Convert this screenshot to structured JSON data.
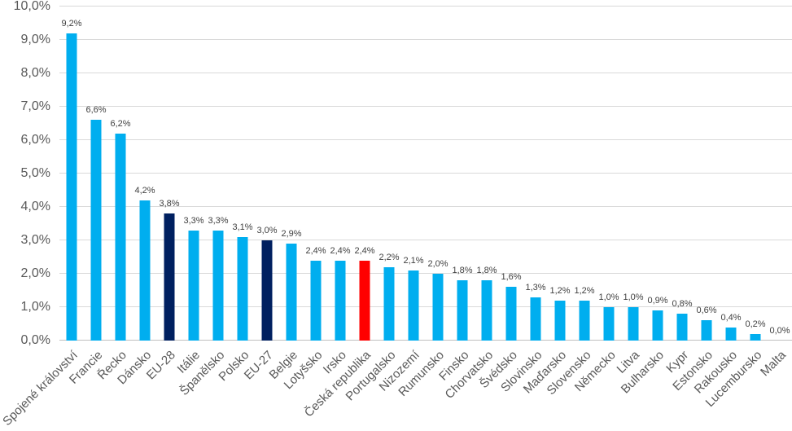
{
  "chart_data": {
    "type": "bar",
    "title": "",
    "xlabel": "",
    "ylabel": "",
    "categories": [
      "Spojené království",
      "Francie",
      "Řecko",
      "Dánsko",
      "EU-28",
      "Itálie",
      "Španělsko",
      "Polsko",
      "EU-27",
      "Belgie",
      "Lotyšsko",
      "Irsko",
      "Česká republika",
      "Portugalsko",
      "Nizozemí",
      "Rumunsko",
      "Finsko",
      "Chorvatsko",
      "Švédsko",
      "Slovinsko",
      "Maďarsko",
      "Slovensko",
      "Německo",
      "Litva",
      "Bulharsko",
      "Kypr",
      "Estonsko",
      "Rakousko",
      "Lucembursko",
      "Malta"
    ],
    "values": [
      9.2,
      6.6,
      6.2,
      4.2,
      3.8,
      3.3,
      3.3,
      3.1,
      3.0,
      2.9,
      2.4,
      2.4,
      2.4,
      2.2,
      2.1,
      2.0,
      1.8,
      1.8,
      1.6,
      1.3,
      1.2,
      1.2,
      1.0,
      1.0,
      0.9,
      0.8,
      0.6,
      0.4,
      0.2,
      0.0
    ],
    "value_labels": [
      "9,2%",
      "6,6%",
      "6,2%",
      "4,2%",
      "3,8%",
      "3,3%",
      "3,3%",
      "3,1%",
      "3,0%",
      "2,9%",
      "2,4%",
      "2,4%",
      "2,4%",
      "2,2%",
      "2,1%",
      "2,0%",
      "1,8%",
      "1,8%",
      "1,6%",
      "1,3%",
      "1,2%",
      "1,2%",
      "1,0%",
      "1,0%",
      "0,9%",
      "0,8%",
      "0,6%",
      "0,4%",
      "0,2%",
      "0,0%"
    ],
    "bar_styles": [
      "blue",
      "blue",
      "blue",
      "blue",
      "navy",
      "blue",
      "blue",
      "blue",
      "navy",
      "blue",
      "blue",
      "blue",
      "red",
      "blue",
      "blue",
      "blue",
      "blue",
      "blue",
      "blue",
      "blue",
      "blue",
      "blue",
      "blue",
      "blue",
      "blue",
      "blue",
      "blue",
      "blue",
      "blue",
      "blue"
    ],
    "palette": {
      "blue": "#00aeef",
      "navy": "#002060",
      "red": "#ff0000"
    },
    "ylim": [
      0,
      10
    ],
    "ytick_labels": [
      "0,0%",
      "1,0%",
      "2,0%",
      "3,0%",
      "4,0%",
      "5,0%",
      "6,0%",
      "7,0%",
      "8,0%",
      "9,0%",
      "10,0%"
    ],
    "grid": true,
    "legend_position": "none",
    "style_colors": {
      "gridline": "#d9d9d9",
      "axis_line": "#bfbfbf",
      "tick_text": "#595959",
      "data_label_text": "#404040",
      "background": "#ffffff"
    }
  }
}
